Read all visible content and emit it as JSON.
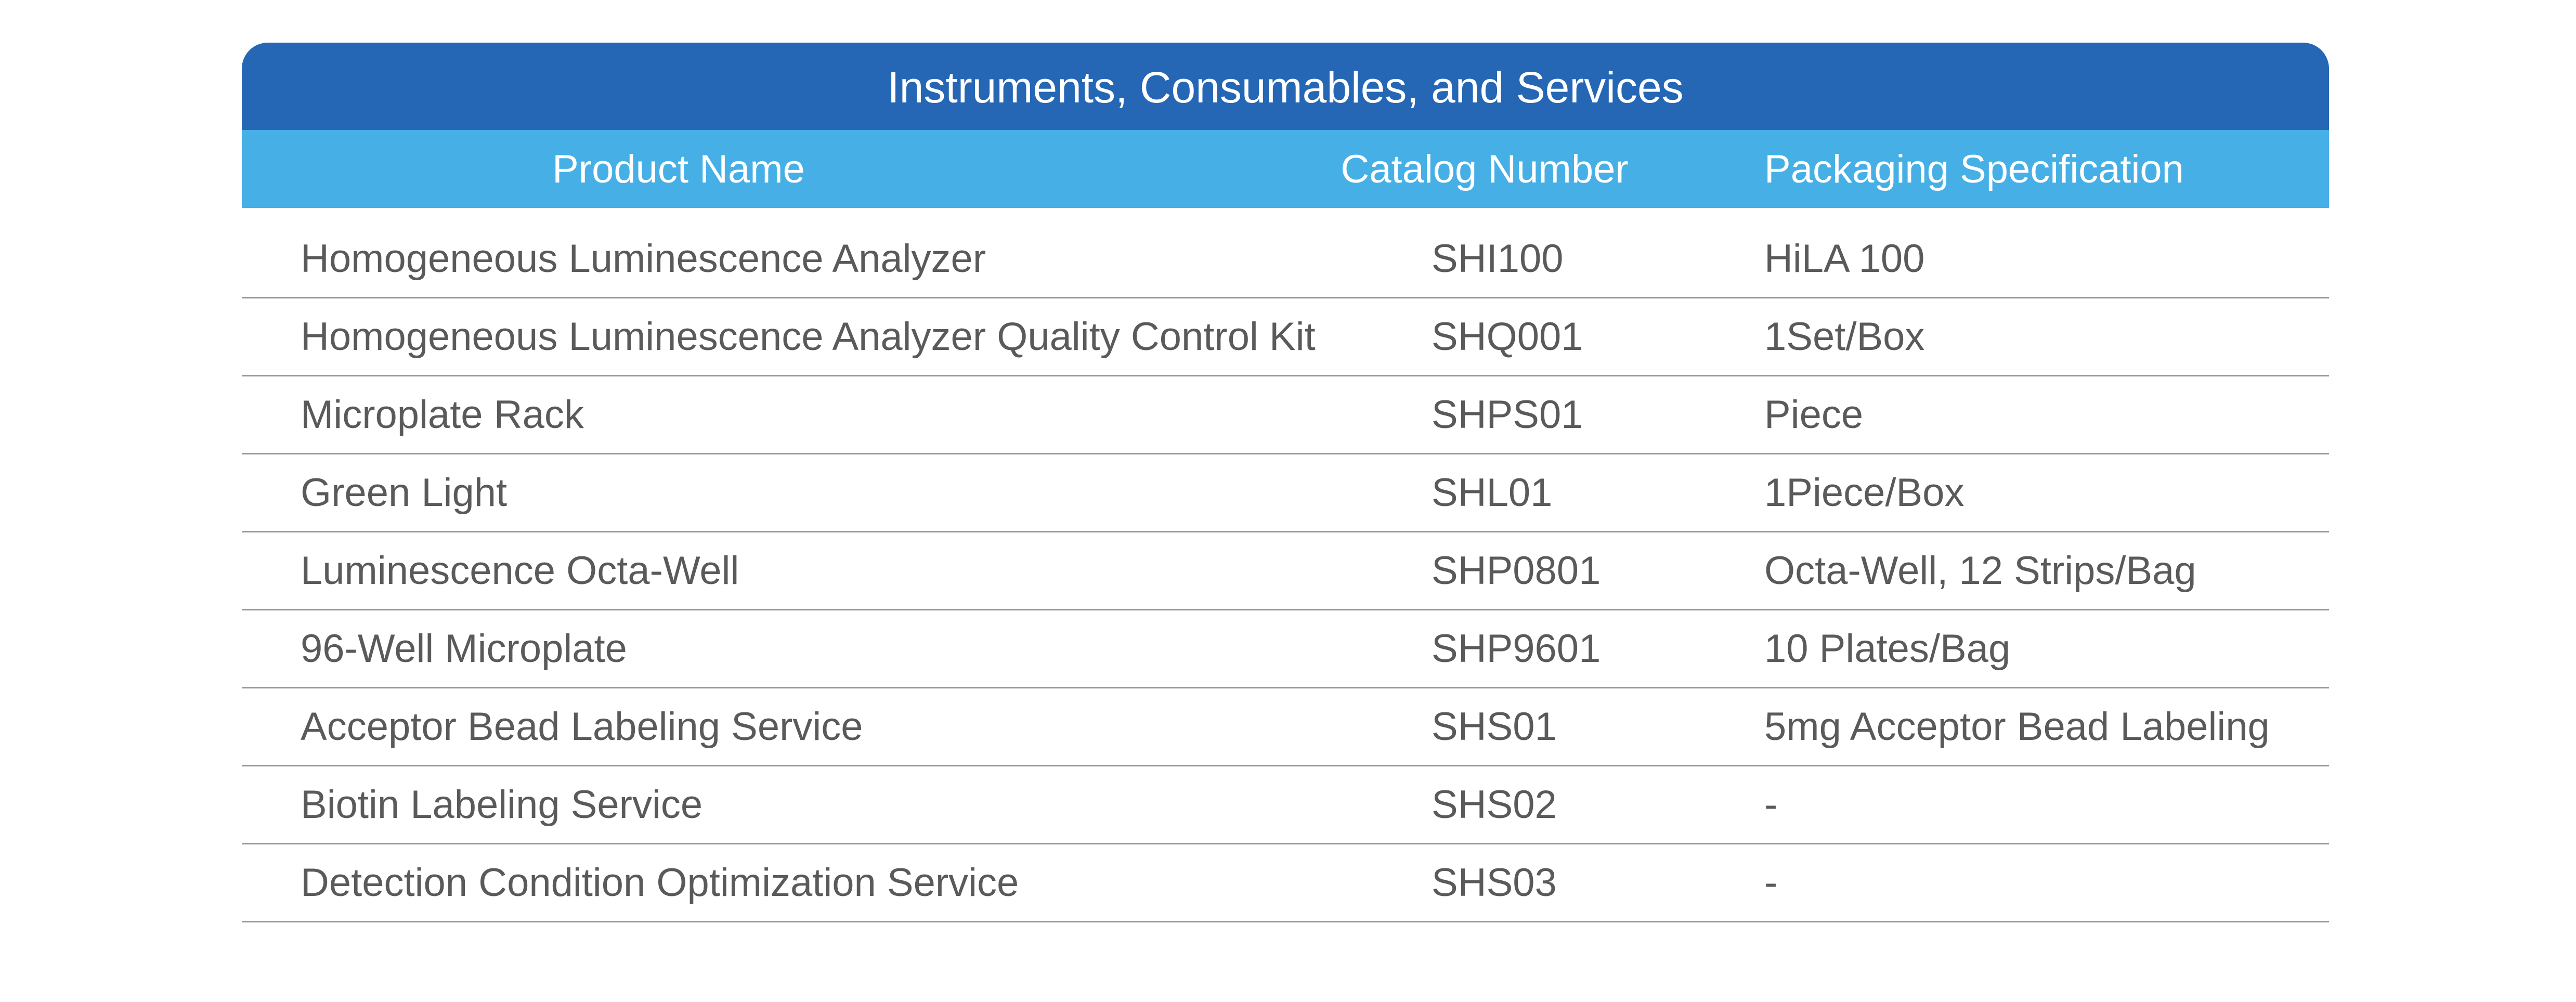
{
  "table": {
    "title": "Instruments, Consumables, and Services",
    "headers": {
      "product_name": "Product Name",
      "catalog_number": "Catalog Number",
      "packaging": "Packaging Specification"
    },
    "rows": [
      {
        "product_name": "Homogeneous Luminescence Analyzer",
        "catalog_number": "SHI100",
        "packaging": "HiLA 100"
      },
      {
        "product_name": "Homogeneous Luminescence Analyzer Quality Control Kit",
        "catalog_number": "SHQ001",
        "packaging": "1Set/Box"
      },
      {
        "product_name": "Microplate Rack",
        "catalog_number": "SHPS01",
        "packaging": "Piece"
      },
      {
        "product_name": "Green Light",
        "catalog_number": "SHL01",
        "packaging": "1Piece/Box"
      },
      {
        "product_name": "Luminescence Octa-Well",
        "catalog_number": "SHP0801",
        "packaging": "Octa-Well, 12 Strips/Bag"
      },
      {
        "product_name": "96-Well Microplate",
        "catalog_number": "SHP9601",
        "packaging": "10 Plates/Bag"
      },
      {
        "product_name": "Acceptor Bead Labeling Service",
        "catalog_number": "SHS01",
        "packaging": "5mg Acceptor Bead Labeling"
      },
      {
        "product_name": "Biotin Labeling Service",
        "catalog_number": "SHS02",
        "packaging": "-"
      },
      {
        "product_name": "Detection Condition Optimization Service",
        "catalog_number": "SHS03",
        "packaging": "-"
      }
    ],
    "colors": {
      "title_bg": "#2566b5",
      "header_bg": "#46b0e6",
      "text": "#5a5a5a"
    }
  }
}
